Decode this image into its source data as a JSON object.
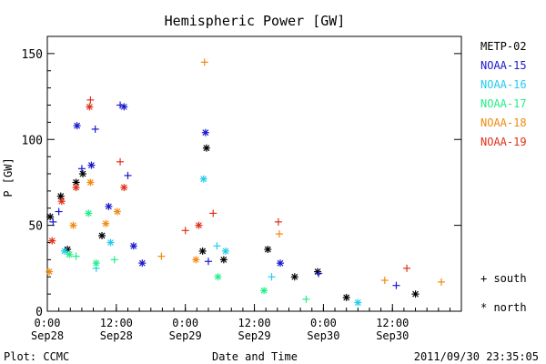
{
  "colors": {
    "METP-02": "#000000",
    "NOAA-15": "#1a1acc",
    "NOAA-16": "#22ccee",
    "NOAA-17": "#22ee88",
    "NOAA-18": "#f08a10",
    "NOAA-19": "#e0301a"
  },
  "chart_data": {
    "type": "scatter",
    "title": "Hemispheric Power [GW]",
    "xlabel": "Date and Time",
    "ylabel": "P [GW]",
    "ylim": [
      0,
      160
    ],
    "yticks": [
      0,
      50,
      100,
      150
    ],
    "xlim": [
      "2011-09-28T00:00",
      "2011-09-30T23:59"
    ],
    "xticks": [
      {
        "time": "2011-09-28T00:00",
        "line1": "0:00",
        "line2": "Sep28"
      },
      {
        "time": "2011-09-28T12:00",
        "line1": "12:00",
        "line2": "Sep28"
      },
      {
        "time": "2011-09-29T00:00",
        "line1": "0:00",
        "line2": "Sep29"
      },
      {
        "time": "2011-09-29T12:00",
        "line1": "12:00",
        "line2": "Sep29"
      },
      {
        "time": "2011-09-30T00:00",
        "line1": "0:00",
        "line2": "Sep30"
      },
      {
        "time": "2011-09-30T12:00",
        "line1": "12:00",
        "line2": "Sep30"
      }
    ],
    "grid": false,
    "legend_position": "right",
    "markers": {
      "south": "+ south",
      "north": "* north"
    },
    "series": [
      {
        "name": "METP-02",
        "points": [
          {
            "t": "2011-09-28T00:30",
            "p": 55,
            "h": "north"
          },
          {
            "t": "2011-09-28T02:20",
            "p": 67,
            "h": "north"
          },
          {
            "t": "2011-09-28T03:30",
            "p": 36,
            "h": "north"
          },
          {
            "t": "2011-09-28T05:00",
            "p": 75,
            "h": "north"
          },
          {
            "t": "2011-09-28T06:10",
            "p": 80,
            "h": "north"
          },
          {
            "t": "2011-09-28T09:30",
            "p": 44,
            "h": "north"
          },
          {
            "t": "2011-09-29T03:40",
            "p": 95,
            "h": "north"
          },
          {
            "t": "2011-09-29T03:00",
            "p": 35,
            "h": "north"
          },
          {
            "t": "2011-09-29T06:40",
            "p": 30,
            "h": "north"
          },
          {
            "t": "2011-09-29T14:20",
            "p": 36,
            "h": "north"
          },
          {
            "t": "2011-09-29T19:00",
            "p": 20,
            "h": "north"
          },
          {
            "t": "2011-09-29T23:00",
            "p": 23,
            "h": "north"
          },
          {
            "t": "2011-09-30T04:00",
            "p": 8,
            "h": "north"
          },
          {
            "t": "2011-09-30T16:00",
            "p": 10,
            "h": "north"
          }
        ]
      },
      {
        "name": "NOAA-15",
        "points": [
          {
            "t": "2011-09-28T01:00",
            "p": 52,
            "h": "south"
          },
          {
            "t": "2011-09-28T02:00",
            "p": 58,
            "h": "south"
          },
          {
            "t": "2011-09-28T05:10",
            "p": 108,
            "h": "north"
          },
          {
            "t": "2011-09-28T06:00",
            "p": 83,
            "h": "south"
          },
          {
            "t": "2011-09-28T07:40",
            "p": 85,
            "h": "north"
          },
          {
            "t": "2011-09-28T08:20",
            "p": 106,
            "h": "south"
          },
          {
            "t": "2011-09-28T10:40",
            "p": 61,
            "h": "north"
          },
          {
            "t": "2011-09-28T12:40",
            "p": 120,
            "h": "south"
          },
          {
            "t": "2011-09-28T13:20",
            "p": 119,
            "h": "north"
          },
          {
            "t": "2011-09-28T14:00",
            "p": 79,
            "h": "south"
          },
          {
            "t": "2011-09-28T15:00",
            "p": 38,
            "h": "north"
          },
          {
            "t": "2011-09-28T16:30",
            "p": 28,
            "h": "north"
          },
          {
            "t": "2011-09-29T03:30",
            "p": 104,
            "h": "north"
          },
          {
            "t": "2011-09-29T04:00",
            "p": 29,
            "h": "south"
          },
          {
            "t": "2011-09-29T16:30",
            "p": 28,
            "h": "north"
          },
          {
            "t": "2011-09-29T23:10",
            "p": 22,
            "h": "south"
          },
          {
            "t": "2011-09-30T12:40",
            "p": 15,
            "h": "south"
          }
        ]
      },
      {
        "name": "NOAA-16",
        "points": [
          {
            "t": "2011-09-28T03:00",
            "p": 35,
            "h": "north"
          },
          {
            "t": "2011-09-28T08:30",
            "p": 25,
            "h": "south"
          },
          {
            "t": "2011-09-28T11:00",
            "p": 40,
            "h": "north"
          },
          {
            "t": "2011-09-29T03:10",
            "p": 77,
            "h": "north"
          },
          {
            "t": "2011-09-29T05:30",
            "p": 38,
            "h": "south"
          },
          {
            "t": "2011-09-29T07:00",
            "p": 35,
            "h": "north"
          },
          {
            "t": "2011-09-29T15:00",
            "p": 20,
            "h": "south"
          },
          {
            "t": "2011-09-30T06:00",
            "p": 5,
            "h": "north"
          }
        ]
      },
      {
        "name": "NOAA-17",
        "points": [
          {
            "t": "2011-09-28T03:50",
            "p": 33,
            "h": "north"
          },
          {
            "t": "2011-09-28T05:00",
            "p": 32,
            "h": "south"
          },
          {
            "t": "2011-09-28T07:10",
            "p": 57,
            "h": "north"
          },
          {
            "t": "2011-09-28T08:30",
            "p": 28,
            "h": "north"
          },
          {
            "t": "2011-09-28T11:40",
            "p": 30,
            "h": "south"
          },
          {
            "t": "2011-09-29T05:40",
            "p": 20,
            "h": "north"
          },
          {
            "t": "2011-09-29T13:40",
            "p": 12,
            "h": "north"
          },
          {
            "t": "2011-09-29T21:00",
            "p": 7,
            "h": "south"
          }
        ]
      },
      {
        "name": "NOAA-18",
        "points": [
          {
            "t": "2011-09-28T00:20",
            "p": 23,
            "h": "north"
          },
          {
            "t": "2011-09-28T04:30",
            "p": 50,
            "h": "north"
          },
          {
            "t": "2011-09-28T07:30",
            "p": 75,
            "h": "north"
          },
          {
            "t": "2011-09-28T10:10",
            "p": 51,
            "h": "north"
          },
          {
            "t": "2011-09-28T12:10",
            "p": 58,
            "h": "north"
          },
          {
            "t": "2011-09-28T19:50",
            "p": 32,
            "h": "south"
          },
          {
            "t": "2011-09-29T01:50",
            "p": 30,
            "h": "north"
          },
          {
            "t": "2011-09-29T03:20",
            "p": 145,
            "h": "south"
          },
          {
            "t": "2011-09-29T16:20",
            "p": 45,
            "h": "south"
          },
          {
            "t": "2011-09-30T10:40",
            "p": 18,
            "h": "south"
          },
          {
            "t": "2011-09-30T20:30",
            "p": 17,
            "h": "south"
          }
        ]
      },
      {
        "name": "NOAA-19",
        "points": [
          {
            "t": "2011-09-28T00:50",
            "p": 41,
            "h": "north"
          },
          {
            "t": "2011-09-28T02:30",
            "p": 64,
            "h": "north"
          },
          {
            "t": "2011-09-28T05:00",
            "p": 72,
            "h": "north"
          },
          {
            "t": "2011-09-28T07:30",
            "p": 123,
            "h": "south"
          },
          {
            "t": "2011-09-28T07:20",
            "p": 119,
            "h": "north"
          },
          {
            "t": "2011-09-28T12:40",
            "p": 87,
            "h": "south"
          },
          {
            "t": "2011-09-28T13:20",
            "p": 72,
            "h": "north"
          },
          {
            "t": "2011-09-29T00:00",
            "p": 47,
            "h": "south"
          },
          {
            "t": "2011-09-29T02:20",
            "p": 50,
            "h": "north"
          },
          {
            "t": "2011-09-29T04:50",
            "p": 57,
            "h": "south"
          },
          {
            "t": "2011-09-29T16:10",
            "p": 52,
            "h": "south"
          },
          {
            "t": "2011-09-30T14:30",
            "p": 25,
            "h": "south"
          }
        ]
      }
    ]
  },
  "footer": {
    "left": "Plot: CCMC",
    "right": "2011/09/30 23:35:05"
  }
}
